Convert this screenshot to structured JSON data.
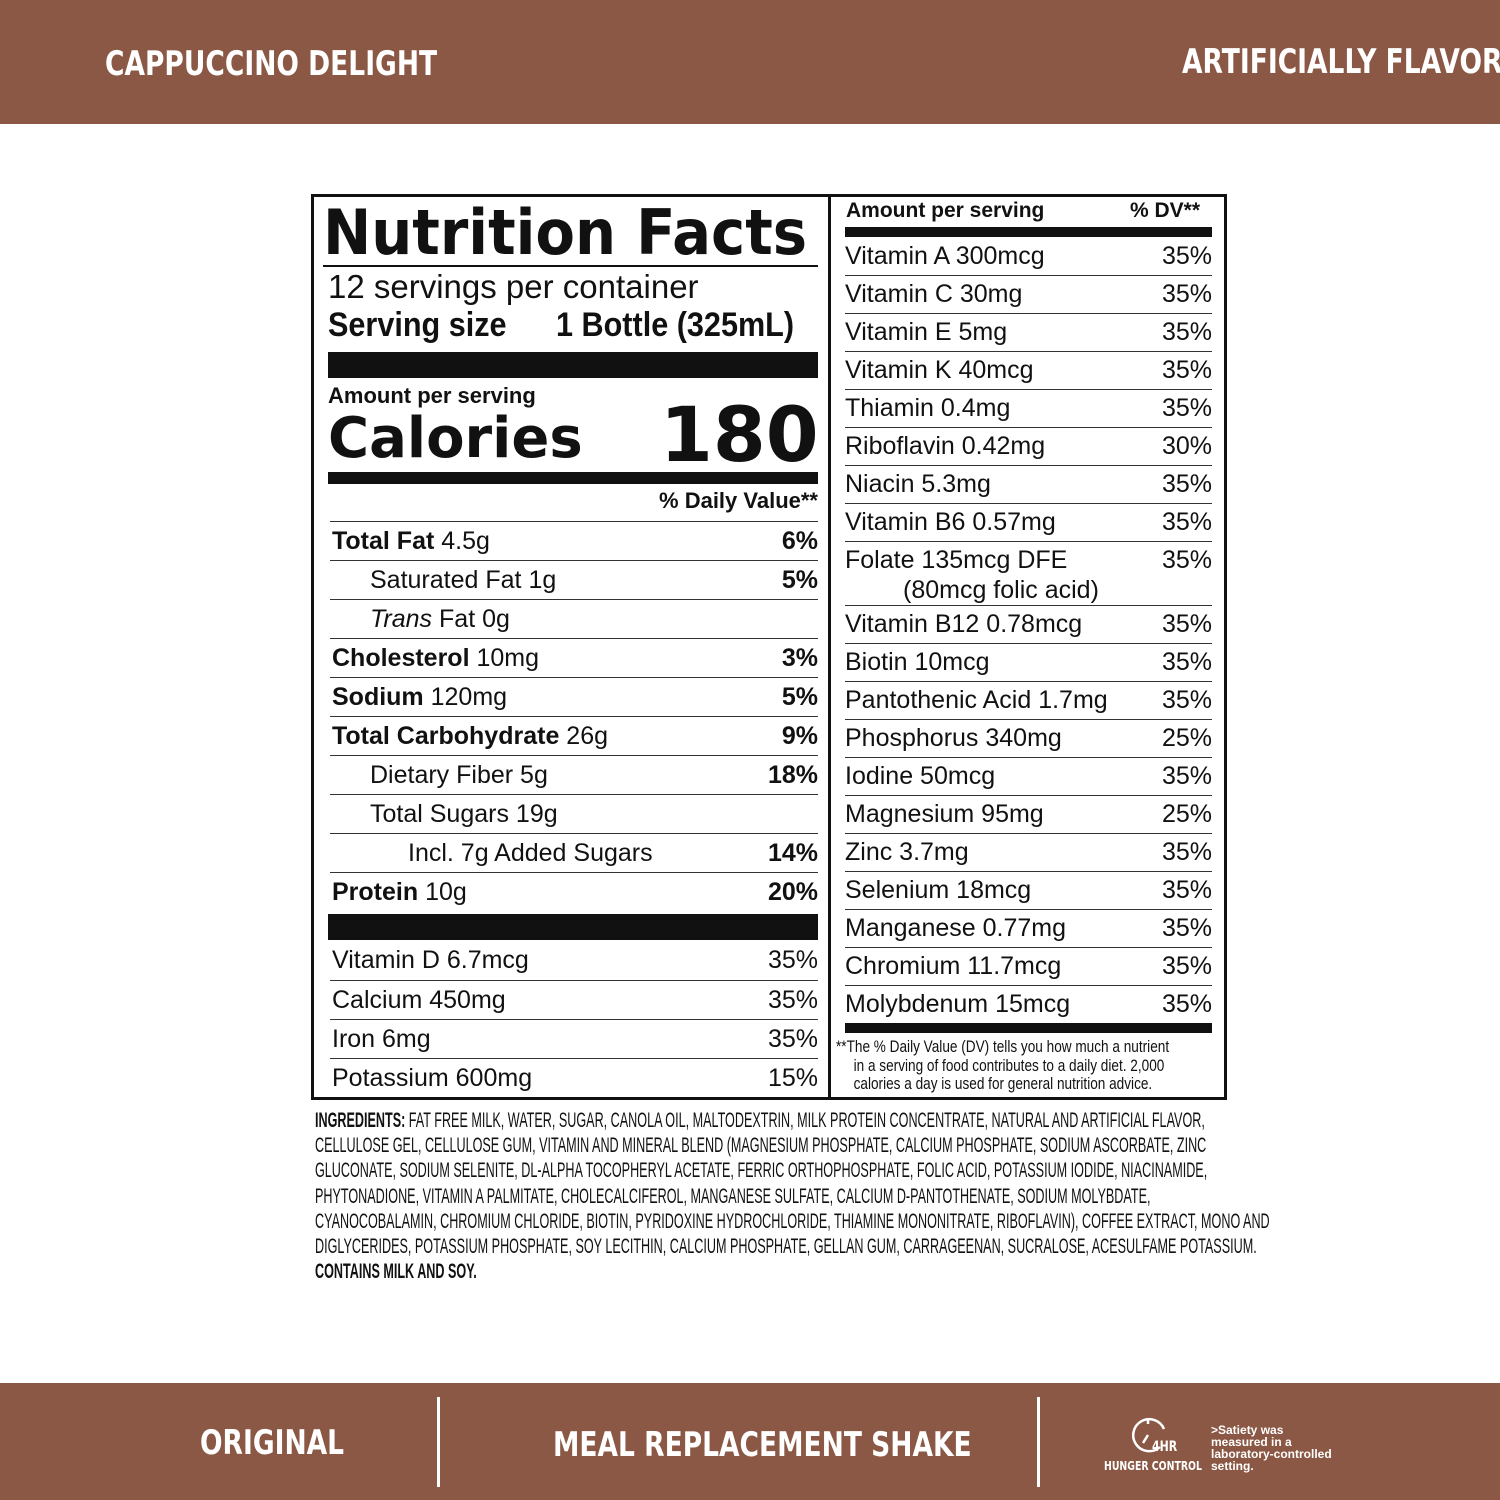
{
  "header": {
    "flavor": "CAPPUCCINO DELIGHT",
    "note": "ARTIFICIALLY FLAVORED"
  },
  "label": {
    "title": "Nutrition Facts",
    "servings": "12 servings per container",
    "serving_size_label": "Serving size",
    "serving_size_value": "1 Bottle (325mL)",
    "amount_per_serving": "Amount per serving",
    "calories_label": "Calories",
    "calories_value": "180",
    "dv_header": "% Daily Value**",
    "nutrients": [
      {
        "name": "Total Fat",
        "amount": "4.5g",
        "dv": "6%",
        "bold": true,
        "indent": 0
      },
      {
        "name": "Saturated Fat",
        "amount": "1g",
        "dv": "5%",
        "bold": false,
        "indent": 1
      },
      {
        "name": "Trans",
        "amount": "Fat 0g",
        "dv": "",
        "bold": false,
        "indent": 1,
        "italic": true
      },
      {
        "name": "Cholesterol",
        "amount": "10mg",
        "dv": "3%",
        "bold": true,
        "indent": 0
      },
      {
        "name": "Sodium",
        "amount": "120mg",
        "dv": "5%",
        "bold": true,
        "indent": 0
      },
      {
        "name": "Total Carbohydrate",
        "amount": "26g",
        "dv": "9%",
        "bold": true,
        "indent": 0
      },
      {
        "name": "Dietary Fiber",
        "amount": "5g",
        "dv": "18%",
        "bold": false,
        "indent": 1
      },
      {
        "name": "Total Sugars",
        "amount": "19g",
        "dv": "",
        "bold": false,
        "indent": 1
      },
      {
        "name": "Incl. 7g Added Sugars",
        "amount": "",
        "dv": "14%",
        "bold": false,
        "indent": 2
      },
      {
        "name": "Protein",
        "amount": "10g",
        "dv": "20%",
        "bold": true,
        "indent": 0
      }
    ],
    "minerals_left": [
      {
        "name": "Vitamin D 6.7mcg",
        "dv": "35%"
      },
      {
        "name": "Calcium 450mg",
        "dv": "35%"
      },
      {
        "name": "Iron 6mg",
        "dv": "35%"
      },
      {
        "name": "Potassium 600mg",
        "dv": "15%"
      }
    ],
    "right_header_amount": "Amount per serving",
    "right_header_dv": "% DV**",
    "vitamins": [
      {
        "name": "Vitamin A 300mcg",
        "dv": "35%"
      },
      {
        "name": "Vitamin C 30mg",
        "dv": "35%"
      },
      {
        "name": "Vitamin E 5mg",
        "dv": "35%"
      },
      {
        "name": "Vitamin K 40mcg",
        "dv": "35%"
      },
      {
        "name": "Thiamin 0.4mg",
        "dv": "35%"
      },
      {
        "name": "Riboflavin 0.42mg",
        "dv": "30%"
      },
      {
        "name": "Niacin 5.3mg",
        "dv": "35%"
      },
      {
        "name": "Vitamin B6 0.57mg",
        "dv": "35%"
      },
      {
        "name": "Folate 135mcg DFE",
        "sub": "(80mcg folic acid)",
        "dv": "35%"
      },
      {
        "name": "Vitamin B12 0.78mcg",
        "dv": "35%"
      },
      {
        "name": "Biotin 10mcg",
        "dv": "35%"
      },
      {
        "name": "Pantothenic Acid 1.7mg",
        "dv": "35%"
      },
      {
        "name": "Phosphorus 340mg",
        "dv": "25%"
      },
      {
        "name": "Iodine 50mcg",
        "dv": "35%"
      },
      {
        "name": "Magnesium 95mg",
        "dv": "25%"
      },
      {
        "name": "Zinc 3.7mg",
        "dv": "35%"
      },
      {
        "name": "Selenium 18mcg",
        "dv": "35%"
      },
      {
        "name": "Manganese 0.77mg",
        "dv": "35%"
      },
      {
        "name": "Chromium 11.7mcg",
        "dv": "35%"
      },
      {
        "name": "Molybdenum 15mcg",
        "dv": "35%"
      }
    ],
    "footnote_lines": [
      "**The % Daily Value (DV) tells you how much a nutrient",
      "in a serving of food contributes to a daily diet. 2,000",
      "calories a day is used for general nutrition advice."
    ]
  },
  "ingredients": {
    "label": "INGREDIENTS:",
    "lines": [
      " FAT FREE MILK, WATER, SUGAR, CANOLA OIL, MALTODEXTRIN, MILK PROTEIN CONCENTRATE, NATURAL AND ARTIFICIAL FLAVOR,",
      "CELLULOSE GEL, CELLULOSE GUM,  VITAMIN AND MINERAL BLEND (MAGNESIUM PHOSPHATE, CALCIUM PHOSPHATE, SODIUM ASCORBATE, ZINC",
      "GLUCONATE, SODIUM SELENITE, DL-ALPHA TOCOPHERYL ACETATE, FERRIC ORTHOPHOSPHATE, FOLIC ACID, POTASSIUM IODIDE, NIACINAMIDE,",
      "PHYTONADIONE, VITAMIN A PALMITATE, CHOLECALCIFEROL, MANGANESE SULFATE, CALCIUM D-PANTOTHENATE, SODIUM MOLYBDATE,",
      "CYANOCOBALAMIN, CHROMIUM CHLORIDE, BIOTIN, PYRIDOXINE HYDROCHLORIDE, THIAMINE MONONITRATE, RIBOFLAVIN), COFFEE EXTRACT, MONO AND",
      "DIGLYCERIDES, POTASSIUM PHOSPHATE, SOY LECITHIN, CALCIUM PHOSPHATE, GELLAN GUM, CARRAGEENAN, SUCRALOSE, ACESULFAME POTASSIUM."
    ],
    "allergens": "CONTAINS MILK AND SOY."
  },
  "footer": {
    "left": "ORIGINAL",
    "center": "MEAL REPLACEMENT SHAKE",
    "badge_value": "4HR",
    "badge_label": "HUNGER CONTROL",
    "badge_icon": "clock-icon",
    "disclaimer_lines": [
      ">Satiety was",
      "measured in a",
      "laboratory-controlled",
      "setting."
    ]
  },
  "colors": {
    "brand_brown": "#8a5844"
  }
}
